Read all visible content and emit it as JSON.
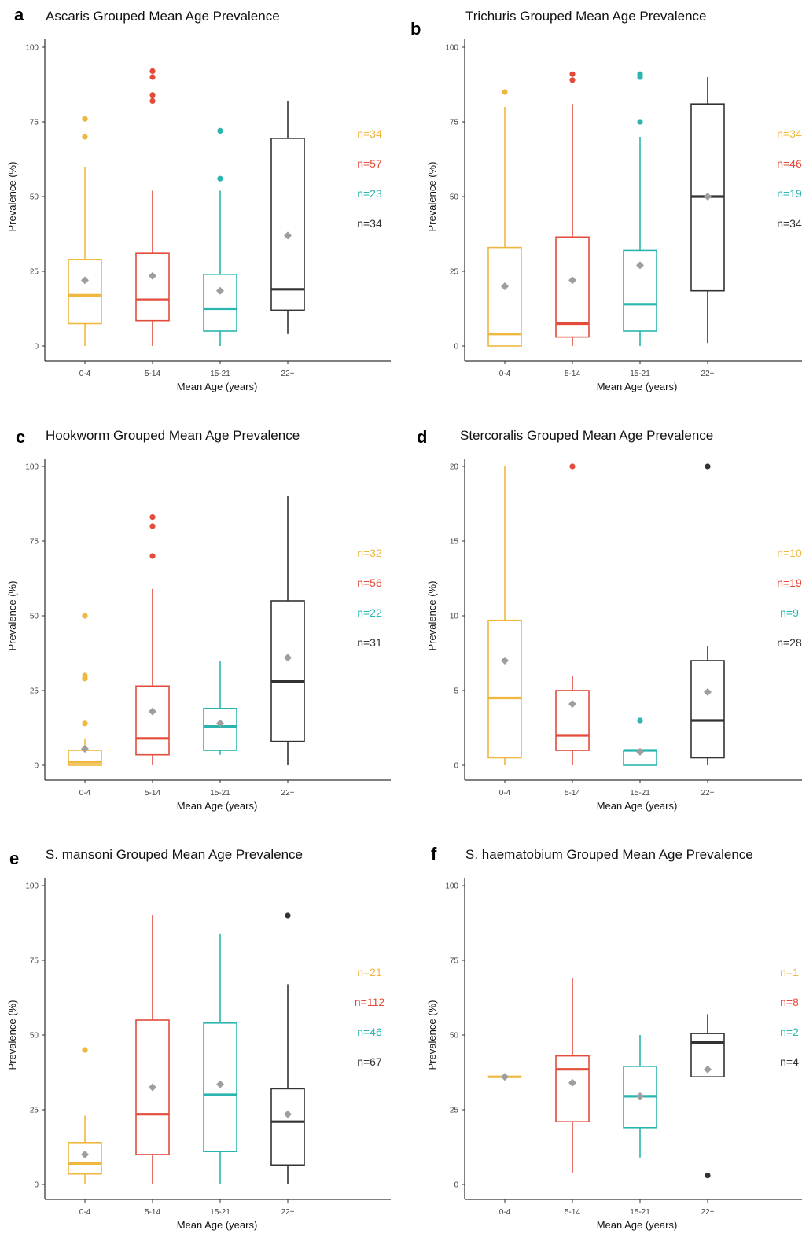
{
  "figure": {
    "colors": {
      "0-4": "#EFB73E",
      "5-14": "#E34B3A",
      "15-21": "#2BB5AE",
      "22+": "#333333",
      "mean_marker": "#9E9E9E"
    }
  },
  "chart_data": [
    {
      "panel": "a",
      "type": "box",
      "title": "Ascaris Grouped Mean Age Prevalence",
      "xlabel": "Mean Age (years)",
      "ylabel": "Prevalence (%)",
      "ylim": [
        0,
        100
      ],
      "yticks": [
        0,
        25,
        50,
        75,
        100
      ],
      "categories": [
        "0-4",
        "5-14",
        "15-21",
        "22+"
      ],
      "boxes": [
        {
          "group": "0-4",
          "lower_whisker": 0,
          "q1": 7.5,
          "median": 17,
          "q3": 29,
          "upper_whisker": 60,
          "mean": 22,
          "outliers": [
            70,
            76
          ]
        },
        {
          "group": "5-14",
          "lower_whisker": 0,
          "q1": 8.5,
          "median": 15.5,
          "q3": 31,
          "upper_whisker": 52,
          "mean": 23.5,
          "outliers": [
            82,
            84,
            90,
            92
          ]
        },
        {
          "group": "15-21",
          "lower_whisker": 0,
          "q1": 5,
          "median": 12.5,
          "q3": 24,
          "upper_whisker": 52,
          "mean": 18.5,
          "outliers": [
            56,
            72
          ]
        },
        {
          "group": "22+",
          "lower_whisker": 4,
          "q1": 12,
          "median": 19,
          "q3": 69.5,
          "upper_whisker": 82,
          "mean": 37,
          "outliers": []
        }
      ],
      "n_labels": [
        "n=34",
        "n=57",
        "n=23",
        "n=34"
      ]
    },
    {
      "panel": "b",
      "type": "box",
      "title": "Trichuris Grouped Mean Age Prevalence",
      "xlabel": "Mean Age (years)",
      "ylabel": "Prevalence (%)",
      "ylim": [
        0,
        100
      ],
      "yticks": [
        0,
        25,
        50,
        75,
        100
      ],
      "categories": [
        "0-4",
        "5-14",
        "15-21",
        "22+"
      ],
      "boxes": [
        {
          "group": "0-4",
          "lower_whisker": 0,
          "q1": 0,
          "median": 4,
          "q3": 33,
          "upper_whisker": 80,
          "mean": 20,
          "outliers": [
            85
          ]
        },
        {
          "group": "5-14",
          "lower_whisker": 0,
          "q1": 3,
          "median": 7.5,
          "q3": 36.5,
          "upper_whisker": 81,
          "mean": 22,
          "outliers": [
            89,
            91
          ]
        },
        {
          "group": "15-21",
          "lower_whisker": 0,
          "q1": 5,
          "median": 14,
          "q3": 32,
          "upper_whisker": 70,
          "mean": 27,
          "outliers": [
            75,
            90,
            91
          ]
        },
        {
          "group": "22+",
          "lower_whisker": 1,
          "q1": 18.5,
          "median": 50,
          "q3": 81,
          "upper_whisker": 90,
          "mean": 50,
          "outliers": []
        }
      ],
      "n_labels": [
        "n=34",
        "n=46",
        "n=19",
        "n=34"
      ]
    },
    {
      "panel": "c",
      "type": "box",
      "title": "Hookworm Grouped Mean Age Prevalence",
      "xlabel": "Mean Age (years)",
      "ylabel": "Prevalence (%)",
      "ylim": [
        0,
        100
      ],
      "yticks": [
        0,
        25,
        50,
        75,
        100
      ],
      "categories": [
        "0-4",
        "5-14",
        "15-21",
        "22+"
      ],
      "boxes": [
        {
          "group": "0-4",
          "lower_whisker": 0,
          "q1": 0,
          "median": 1,
          "q3": 5,
          "upper_whisker": 9,
          "mean": 5.5,
          "outliers": [
            14,
            29,
            30,
            50
          ]
        },
        {
          "group": "5-14",
          "lower_whisker": 0,
          "q1": 3.5,
          "median": 9,
          "q3": 26.5,
          "upper_whisker": 59,
          "mean": 18,
          "outliers": [
            70,
            80,
            83
          ]
        },
        {
          "group": "15-21",
          "lower_whisker": 3.5,
          "q1": 5,
          "median": 13,
          "q3": 19,
          "upper_whisker": 35,
          "mean": 14,
          "outliers": []
        },
        {
          "group": "22+",
          "lower_whisker": 0,
          "q1": 8,
          "median": 28,
          "q3": 55,
          "upper_whisker": 90,
          "mean": 36,
          "outliers": []
        }
      ],
      "n_labels": [
        "n=32",
        "n=56",
        "n=22",
        "n=31"
      ]
    },
    {
      "panel": "d",
      "type": "box",
      "title": "Stercoralis Grouped Mean Age Prevalence",
      "xlabel": "Mean Age (years)",
      "ylabel": "Prevalence (%)",
      "ylim": [
        0,
        20
      ],
      "yticks": [
        0,
        5,
        10,
        15,
        20
      ],
      "categories": [
        "0-4",
        "5-14",
        "15-21",
        "22+"
      ],
      "boxes": [
        {
          "group": "0-4",
          "lower_whisker": 0,
          "q1": 0.5,
          "median": 4.5,
          "q3": 9.7,
          "upper_whisker": 20,
          "mean": 7,
          "outliers": []
        },
        {
          "group": "5-14",
          "lower_whisker": 0,
          "q1": 1,
          "median": 2,
          "q3": 5,
          "upper_whisker": 6,
          "mean": 4.1,
          "outliers": [
            20
          ]
        },
        {
          "group": "15-21",
          "lower_whisker": 0,
          "q1": 0,
          "median": 1,
          "q3": 1,
          "upper_whisker": 1,
          "mean": 0.9,
          "outliers": [
            3
          ]
        },
        {
          "group": "22+",
          "lower_whisker": 0,
          "q1": 0.5,
          "median": 3,
          "q3": 7,
          "upper_whisker": 8,
          "mean": 4.9,
          "outliers": [
            20
          ]
        }
      ],
      "n_labels": [
        "n=10",
        "n=19",
        "n=9",
        "n=28"
      ]
    },
    {
      "panel": "e",
      "type": "box",
      "title": "S. mansoni Grouped Mean Age Prevalence",
      "xlabel": "Mean Age (years)",
      "ylabel": "Prevalence (%)",
      "ylim": [
        0,
        100
      ],
      "yticks": [
        0,
        25,
        50,
        75,
        100
      ],
      "categories": [
        "0-4",
        "5-14",
        "15-21",
        "22+"
      ],
      "boxes": [
        {
          "group": "0-4",
          "lower_whisker": 0,
          "q1": 3.5,
          "median": 7,
          "q3": 14,
          "upper_whisker": 23,
          "mean": 10,
          "outliers": [
            45
          ]
        },
        {
          "group": "5-14",
          "lower_whisker": 0,
          "q1": 10,
          "median": 23.5,
          "q3": 55,
          "upper_whisker": 90,
          "mean": 32.5,
          "outliers": []
        },
        {
          "group": "15-21",
          "lower_whisker": 0,
          "q1": 11,
          "median": 30,
          "q3": 54,
          "upper_whisker": 84,
          "mean": 33.5,
          "outliers": []
        },
        {
          "group": "22+",
          "lower_whisker": 0,
          "q1": 6.5,
          "median": 21,
          "q3": 32,
          "upper_whisker": 67,
          "mean": 23.5,
          "outliers": [
            90
          ]
        }
      ],
      "n_labels": [
        "n=21",
        "n=112",
        "n=46",
        "n=67"
      ]
    },
    {
      "panel": "f",
      "type": "box",
      "title": "S. haematobium Grouped Mean Age Prevalence",
      "xlabel": "Mean Age (years)",
      "ylabel": "Prevalence (%)",
      "ylim": [
        0,
        100
      ],
      "yticks": [
        0,
        25,
        50,
        75,
        100
      ],
      "categories": [
        "0-4",
        "5-14",
        "15-21",
        "22+"
      ],
      "boxes": [
        {
          "group": "0-4",
          "lower_whisker": 36,
          "q1": 36,
          "median": 36,
          "q3": 36,
          "upper_whisker": 36,
          "mean": 36,
          "outliers": []
        },
        {
          "group": "5-14",
          "lower_whisker": 4,
          "q1": 21,
          "median": 38.5,
          "q3": 43,
          "upper_whisker": 69,
          "mean": 34,
          "outliers": []
        },
        {
          "group": "15-21",
          "lower_whisker": 9,
          "q1": 19,
          "median": 29.5,
          "q3": 39.5,
          "upper_whisker": 50,
          "mean": 29.5,
          "outliers": []
        },
        {
          "group": "22+",
          "lower_whisker": 36,
          "q1": 36,
          "median": 47.5,
          "q3": 50.5,
          "upper_whisker": 57,
          "mean": 38.5,
          "outliers": [
            3
          ]
        }
      ],
      "n_labels": [
        "n=1",
        "n=8",
        "n=2",
        "n=4"
      ]
    }
  ]
}
